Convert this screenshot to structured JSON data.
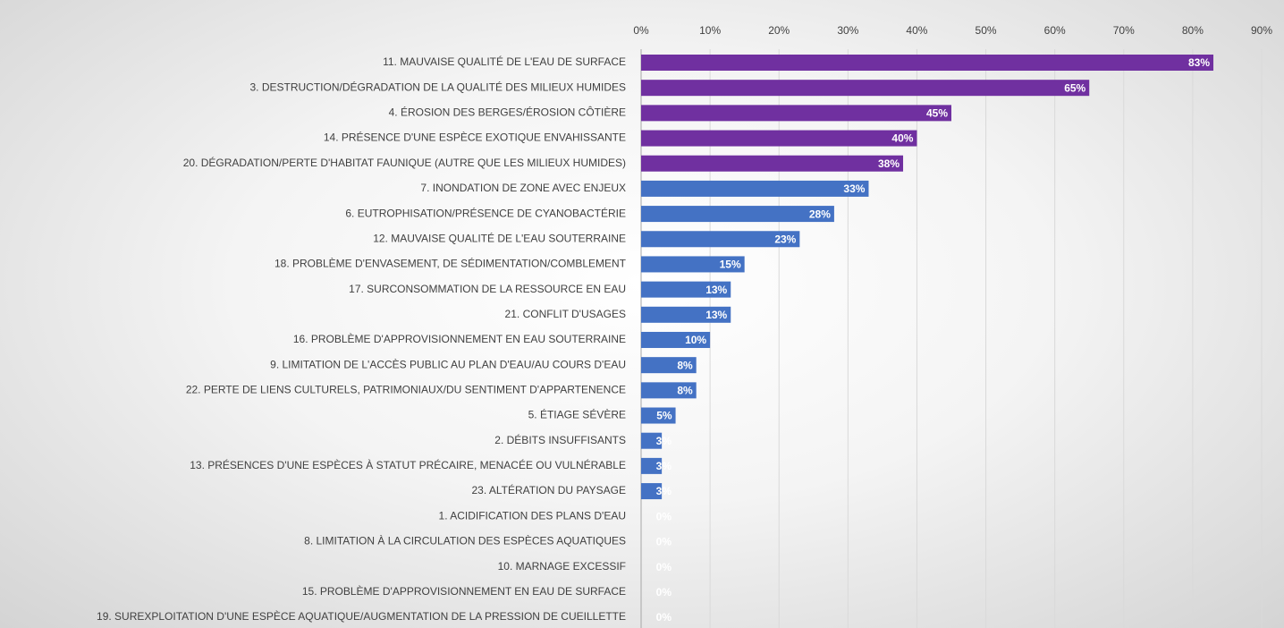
{
  "chart_data": {
    "type": "barh",
    "categories": [
      "11. MAUVAISE QUALITÉ DE L'EAU DE SURFACE",
      "3. DESTRUCTION/DÉGRADATION DE LA QUALITÉ DES MILIEUX HUMIDES",
      "4. ÉROSION DES BERGES/ÉROSION CÔTIÈRE",
      "14. PRÉSENCE D'UNE ESPÈCE EXOTIQUE ENVAHISSANTE",
      "20. DÉGRADATION/PERTE D'HABITAT FAUNIQUE (AUTRE QUE LES MILIEUX HUMIDES)",
      "7. INONDATION DE ZONE AVEC ENJEUX",
      "6. EUTROPHISATION/PRÉSENCE DE CYANOBACTÉRIE",
      "12. MAUVAISE QUALITÉ DE L'EAU SOUTERRAINE",
      "18. PROBLÈME D'ENVASEMENT, DE SÉDIMENTATION/COMBLEMENT",
      "17. SURCONSOMMATION DE LA RESSOURCE EN EAU",
      "21. CONFLIT D'USAGES",
      "16. PROBLÈME D'APPROVISIONNEMENT EN EAU SOUTERRAINE",
      "9. LIMITATION DE L'ACCÈS PUBLIC AU PLAN D'EAU/AU COURS D'EAU",
      "22. PERTE DE LIENS CULTURELS, PATRIMONIAUX/DU SENTIMENT D'APPARTENENCE",
      "5. ÉTIAGE SÉVÈRE",
      "2. DÉBITS INSUFFISANTS",
      "13. PRÉSENCES D'UNE ESPÈCES À STATUT PRÉCAIRE, MENACÉE OU VULNÉRABLE",
      "23. ALTÉRATION DU PAYSAGE",
      "1. ACIDIFICATION DES PLANS D'EAU",
      "8. LIMITATION À LA CIRCULATION DES ESPÈCES AQUATIQUES",
      "10. MARNAGE EXCESSIF",
      "15. PROBLÈME D'APPROVISIONNEMENT EN EAU DE SURFACE",
      "19. SUREXPLOITATION D'UNE ESPÈCE AQUATIQUE/AUGMENTATION DE LA PRESSION DE CUEILLETTE"
    ],
    "values": [
      83,
      65,
      45,
      40,
      38,
      33,
      28,
      23,
      15,
      13,
      13,
      10,
      8,
      8,
      5,
      3,
      3,
      3,
      0,
      0,
      0,
      0,
      0
    ],
    "value_labels": [
      "83%",
      "65%",
      "45%",
      "40%",
      "38%",
      "33%",
      "28%",
      "23%",
      "15%",
      "13%",
      "13%",
      "10%",
      "8%",
      "8%",
      "5%",
      "3%",
      "3%",
      "3%",
      "0%",
      "0%",
      "0%",
      "0%",
      "0%"
    ],
    "colors": [
      "#7030a0",
      "#7030a0",
      "#7030a0",
      "#7030a0",
      "#7030a0",
      "#4472c4",
      "#4472c4",
      "#4472c4",
      "#4472c4",
      "#4472c4",
      "#4472c4",
      "#4472c4",
      "#4472c4",
      "#4472c4",
      "#4472c4",
      "#4472c4",
      "#4472c4",
      "#4472c4",
      "#4472c4",
      "#4472c4",
      "#4472c4",
      "#4472c4",
      "#4472c4"
    ],
    "xlim": [
      0,
      90
    ],
    "xticks": [
      {
        "value": 0,
        "label": "0%"
      },
      {
        "value": 10,
        "label": "10%"
      },
      {
        "value": 20,
        "label": "20%"
      },
      {
        "value": 30,
        "label": "30%"
      },
      {
        "value": 40,
        "label": "40%"
      },
      {
        "value": 50,
        "label": "50%"
      },
      {
        "value": 60,
        "label": "60%"
      },
      {
        "value": 70,
        "label": "70%"
      },
      {
        "value": 80,
        "label": "80%"
      },
      {
        "value": 90,
        "label": "90%"
      }
    ],
    "grid": true
  }
}
